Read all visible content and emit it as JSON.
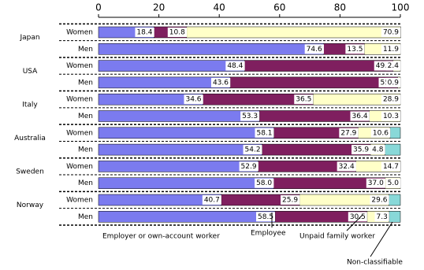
{
  "chart_data": {
    "type": "stacked-bar",
    "groups": [
      "Japan",
      "USA",
      "Italy",
      "Australia",
      "Sweden",
      "Norway"
    ],
    "categories": [
      "Women",
      "Men",
      "Women",
      "Men",
      "Women",
      "Men",
      "Women",
      "Men",
      "Women",
      "Men",
      "Women",
      "Men"
    ],
    "series": [
      {
        "name": "Employer or own-account worker",
        "color": "#7b7bef",
        "values": [
          18.4,
          74.6,
          48.4,
          43.6,
          34.6,
          53.3,
          58.1,
          54.2,
          52.9,
          58,
          40.7,
          58.5
        ],
        "value_labels": [
          "18.4",
          "74.6",
          "48.4",
          "43.6",
          "34.6",
          "53.3",
          "58.1",
          "54.2",
          "52.9",
          "58.0",
          "40.7",
          "58.5"
        ]
      },
      {
        "name": "Employee",
        "color": "#7f1f5f",
        "values": [
          10.8,
          13.5,
          49.2,
          55.5,
          36.5,
          36.4,
          27.9,
          35.9,
          32.4,
          37,
          25.9,
          30.5
        ],
        "value_labels": [
          "10.8",
          "13.5",
          "49.2",
          "55.5",
          "36.5",
          "36.4",
          "27.9",
          "35.9",
          "32.4",
          "37.0",
          "25.9",
          "30.5"
        ]
      },
      {
        "name": "Unpaid family worker",
        "color": "#ffffc8",
        "values": [
          70.9,
          11.9,
          2.4,
          0.9,
          28.9,
          10.3,
          10.6,
          4.8,
          14.7,
          5,
          29.6,
          7.3
        ],
        "value_labels": [
          "70.9",
          "11.9",
          "2.4",
          "0.9",
          "28.9",
          "10.3",
          "10.6",
          "4.8",
          "14.7",
          "5.0",
          "29.6",
          "7.3"
        ]
      },
      {
        "name": "Non-classifiable",
        "color": "#88d8d8",
        "values": [
          0,
          0,
          0,
          0,
          0,
          0,
          3.4,
          5.1,
          0,
          0,
          3.8,
          3.7
        ]
      }
    ],
    "xlim": [
      0,
      100
    ],
    "xticks": [
      0,
      20,
      40,
      60,
      80,
      100
    ]
  }
}
